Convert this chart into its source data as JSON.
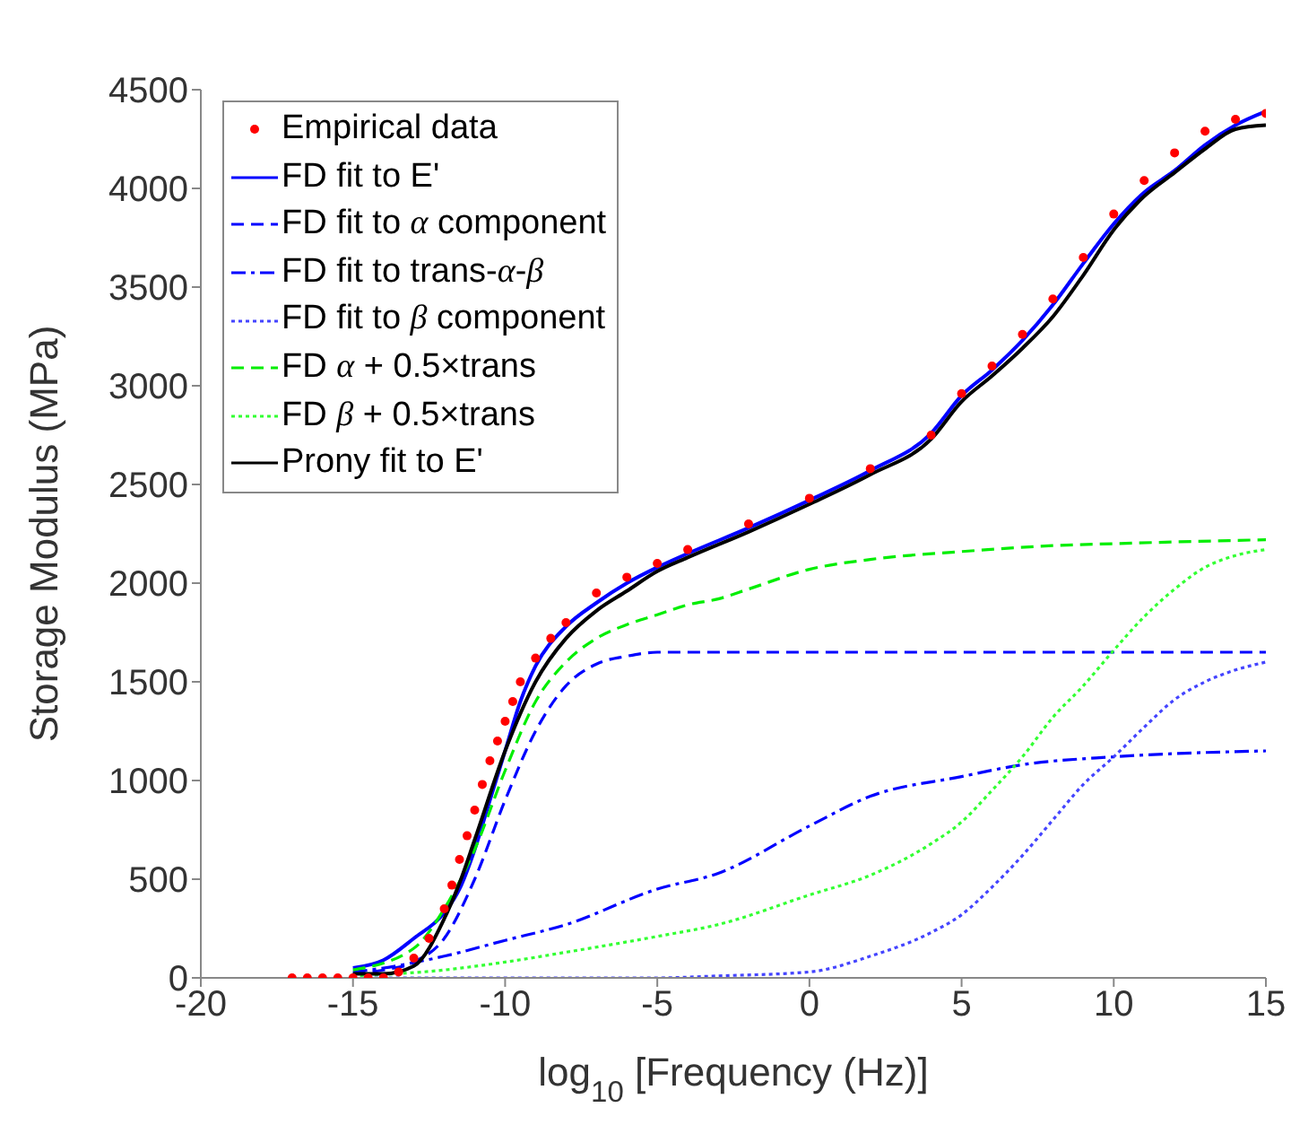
{
  "chart_data": {
    "type": "line",
    "xlabel": "log$_{10}$ [Frequency (Hz)]",
    "ylabel": "Storage Modulus (MPa)",
    "xlim": [
      -20,
      15
    ],
    "xticks": [
      -20,
      -15,
      -10,
      -5,
      0,
      5,
      10,
      15
    ],
    "ylim": [
      0,
      4500
    ],
    "yticks": [
      0,
      500,
      1000,
      1500,
      2000,
      2500,
      3000,
      3500,
      4000,
      4500
    ],
    "legend": "top left",
    "series": [
      {
        "name": "Empirical data",
        "type": "scatter",
        "marker": "circle",
        "color": "#ff0000",
        "x": [
          -17,
          -16.5,
          -16,
          -15.5,
          -15,
          -14.5,
          -14,
          -13.5,
          -13,
          -12.5,
          -12,
          -11.75,
          -11.5,
          -11.25,
          -11,
          -10.75,
          -10.5,
          -10.25,
          -10,
          -9.75,
          -9.5,
          -9,
          -8.5,
          -8,
          -7,
          -6,
          -5,
          -4,
          -2,
          0,
          2,
          4,
          5,
          6,
          7,
          8,
          9,
          10,
          11,
          12,
          13,
          14,
          15
        ],
        "values": [
          0,
          0,
          0,
          0,
          0,
          0,
          0,
          30,
          100,
          200,
          350,
          470,
          600,
          720,
          850,
          980,
          1100,
          1200,
          1300,
          1400,
          1500,
          1620,
          1720,
          1800,
          1950,
          2030,
          2100,
          2170,
          2300,
          2430,
          2580,
          2750,
          2960,
          3100,
          3260,
          3440,
          3650,
          3870,
          4040,
          4180,
          4290,
          4350,
          4380
        ]
      },
      {
        "name": "FD fit to E'",
        "color": "#0000ff",
        "line_style": "solid",
        "x": [
          -15,
          -14,
          -13,
          -12,
          -11.5,
          -11,
          -10.5,
          -10,
          -9.5,
          -9,
          -8,
          -7,
          -6,
          -5,
          -4,
          -2,
          0,
          2,
          4,
          5,
          6,
          7,
          8,
          9,
          10,
          11,
          12,
          13,
          14,
          15
        ],
        "values": [
          50,
          90,
          200,
          330,
          450,
          650,
          900,
          1150,
          1400,
          1580,
          1780,
          1900,
          2000,
          2080,
          2150,
          2280,
          2420,
          2570,
          2760,
          2950,
          3080,
          3230,
          3410,
          3620,
          3820,
          3980,
          4090,
          4220,
          4320,
          4390
        ]
      },
      {
        "name": "FD fit to α component",
        "color": "#0000ff",
        "line_style": "dashed",
        "x": [
          -15,
          -14,
          -13,
          -12,
          -11,
          -10,
          -9,
          -8,
          -7,
          -6,
          -5,
          -3,
          0,
          5,
          10,
          15
        ],
        "values": [
          20,
          40,
          80,
          200,
          500,
          900,
          1250,
          1480,
          1590,
          1630,
          1650,
          1650,
          1650,
          1650,
          1650,
          1650
        ]
      },
      {
        "name": "FD fit to trans-α-β",
        "color": "#0000ff",
        "line_style": "dashdot",
        "x": [
          -15,
          -14,
          -12,
          -10,
          -8,
          -5,
          -3,
          0,
          2,
          5,
          7,
          10,
          15
        ],
        "values": [
          30,
          50,
          110,
          190,
          270,
          450,
          530,
          770,
          920,
          1020,
          1080,
          1120,
          1150
        ]
      },
      {
        "name": "FD fit to β component",
        "color": "#4444ff",
        "line_style": "dotted",
        "x": [
          -15,
          -10,
          -5,
          -3,
          0,
          2,
          4,
          5,
          6,
          7,
          8,
          9,
          10,
          11,
          12,
          13,
          14,
          15
        ],
        "values": [
          0,
          0,
          0,
          10,
          30,
          110,
          230,
          320,
          460,
          620,
          800,
          980,
          1120,
          1270,
          1410,
          1500,
          1560,
          1600
        ]
      },
      {
        "name": "FD α + 0.5×trans",
        "color": "#00ee00",
        "line_style": "dashed",
        "x": [
          -15,
          -13,
          -12,
          -11,
          -10,
          -9,
          -8,
          -7,
          -6,
          -5,
          -4,
          -3,
          -2,
          0,
          2,
          5,
          8,
          10,
          15
        ],
        "values": [
          40,
          150,
          350,
          650,
          1050,
          1400,
          1600,
          1720,
          1790,
          1840,
          1890,
          1920,
          1970,
          2070,
          2120,
          2160,
          2190,
          2200,
          2220
        ]
      },
      {
        "name": "FD β + 0.5×trans",
        "color": "#33ff33",
        "line_style": "dotted",
        "x": [
          -15,
          -12,
          -10,
          -8,
          -5,
          -3,
          0,
          2,
          4,
          5,
          6,
          7,
          8,
          9,
          10,
          11,
          12,
          13,
          14,
          15
        ],
        "values": [
          10,
          40,
          80,
          130,
          210,
          270,
          420,
          520,
          680,
          790,
          950,
          1120,
          1320,
          1480,
          1660,
          1830,
          1970,
          2080,
          2140,
          2170
        ]
      },
      {
        "name": "Prony fit to E'",
        "color": "#000000",
        "line_style": "solid",
        "x": [
          -15,
          -14,
          -13,
          -12,
          -11.5,
          -11,
          -10,
          -9,
          -8,
          -7,
          -6,
          -5,
          -4,
          -2,
          0,
          2,
          4,
          5,
          6,
          7,
          8,
          9,
          10,
          11,
          12,
          13,
          14,
          15
        ],
        "values": [
          20,
          20,
          60,
          300,
          480,
          700,
          1150,
          1500,
          1720,
          1860,
          1960,
          2060,
          2130,
          2260,
          2400,
          2550,
          2730,
          2920,
          3050,
          3190,
          3350,
          3560,
          3790,
          3960,
          4080,
          4200,
          4300,
          4320
        ]
      }
    ]
  }
}
